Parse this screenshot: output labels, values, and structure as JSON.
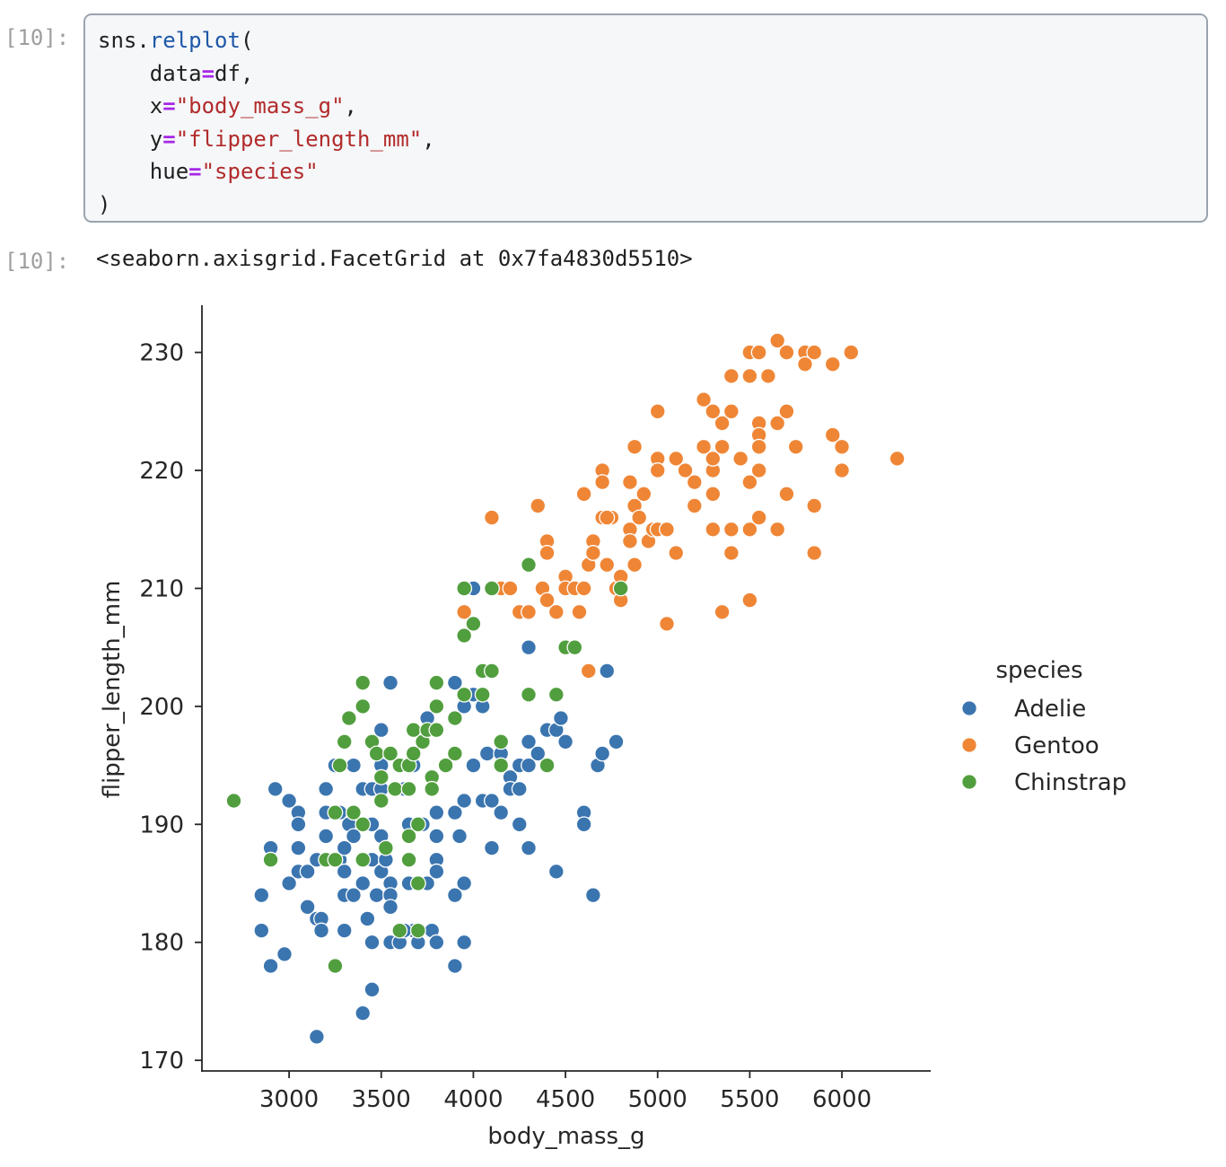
{
  "cell": {
    "input_prompt": "[10]:",
    "output_prompt": "[10]:",
    "code": {
      "l1_obj": "sns.",
      "l1_fn": "relplot",
      "l1_paren": "(",
      "l2_key": "data",
      "l2_val": "df,",
      "l3_key": "x",
      "l3_str": "\"body_mass_g\"",
      "l3_end": ",",
      "l4_key": "y",
      "l4_str": "\"flipper_length_mm\"",
      "l4_end": ",",
      "l5_key": "hue",
      "l5_str": "\"species\"",
      "l6": ")",
      "eq": "="
    },
    "output_text": "<seaborn.axisgrid.FacetGrid at 0x7fa4830d5510>"
  },
  "chart_data": {
    "type": "scatter",
    "xlabel": "body_mass_g",
    "ylabel": "flipper_length_mm",
    "xlim": [
      2527,
      6482
    ],
    "ylim": [
      169.1,
      234
    ],
    "xticks": [
      3000,
      3500,
      4000,
      4500,
      5000,
      5500,
      6000
    ],
    "yticks": [
      170,
      180,
      190,
      200,
      210,
      220,
      230
    ],
    "grid": false,
    "legend": {
      "title": "species",
      "placement": "center-right"
    },
    "series": [
      {
        "name": "Adelie",
        "color": "#3b75af",
        "points": [
          [
            2850,
            184
          ],
          [
            2850,
            181
          ],
          [
            2900,
            178
          ],
          [
            2900,
            188
          ],
          [
            2925,
            193
          ],
          [
            2975,
            179
          ],
          [
            3000,
            192
          ],
          [
            3000,
            185
          ],
          [
            3050,
            191
          ],
          [
            3050,
            190
          ],
          [
            3050,
            188
          ],
          [
            3050,
            186
          ],
          [
            3100,
            183
          ],
          [
            3100,
            186
          ],
          [
            3150,
            187
          ],
          [
            3150,
            182
          ],
          [
            3150,
            172
          ],
          [
            3175,
            182
          ],
          [
            3175,
            181
          ],
          [
            3200,
            193
          ],
          [
            3200,
            191
          ],
          [
            3200,
            189
          ],
          [
            3250,
            195
          ],
          [
            3275,
            191
          ],
          [
            3275,
            187
          ],
          [
            3300,
            188
          ],
          [
            3300,
            186
          ],
          [
            3300,
            184
          ],
          [
            3300,
            181
          ],
          [
            3325,
            190
          ],
          [
            3350,
            195
          ],
          [
            3350,
            191
          ],
          [
            3350,
            189
          ],
          [
            3350,
            184
          ],
          [
            3400,
            193
          ],
          [
            3400,
            187
          ],
          [
            3400,
            185
          ],
          [
            3400,
            174
          ],
          [
            3425,
            182
          ],
          [
            3450,
            190
          ],
          [
            3450,
            187
          ],
          [
            3450,
            193
          ],
          [
            3450,
            176
          ],
          [
            3475,
            184
          ],
          [
            3500,
            198
          ],
          [
            3500,
            195
          ],
          [
            3500,
            193
          ],
          [
            3500,
            189
          ],
          [
            3500,
            186
          ],
          [
            3525,
            187
          ],
          [
            3550,
            202
          ],
          [
            3550,
            185
          ],
          [
            3550,
            184
          ],
          [
            3550,
            183
          ],
          [
            3550,
            180
          ],
          [
            3600,
            180
          ],
          [
            3625,
            193
          ],
          [
            3650,
            190
          ],
          [
            3650,
            185
          ],
          [
            3675,
            181
          ],
          [
            3700,
            190
          ],
          [
            3700,
            180
          ],
          [
            3725,
            190
          ],
          [
            3750,
            199
          ],
          [
            3750,
            185
          ],
          [
            3775,
            181
          ],
          [
            3800,
            198
          ],
          [
            3800,
            191
          ],
          [
            3800,
            189
          ],
          [
            3800,
            187
          ],
          [
            3800,
            186
          ],
          [
            3800,
            180
          ],
          [
            3850,
            195
          ],
          [
            3900,
            202
          ],
          [
            3900,
            191
          ],
          [
            3900,
            184
          ],
          [
            3900,
            178
          ],
          [
            3925,
            189
          ],
          [
            3950,
            200
          ],
          [
            3950,
            192
          ],
          [
            3950,
            185
          ],
          [
            3950,
            180
          ],
          [
            4000,
            210
          ],
          [
            4000,
            201
          ],
          [
            4000,
            195
          ],
          [
            4050,
            200
          ],
          [
            4050,
            192
          ],
          [
            4075,
            196
          ],
          [
            4100,
            188
          ],
          [
            4100,
            192
          ],
          [
            4150,
            196
          ],
          [
            4150,
            191
          ],
          [
            4200,
            194
          ],
          [
            4200,
            193
          ],
          [
            4250,
            195
          ],
          [
            4250,
            190
          ],
          [
            4250,
            193
          ],
          [
            4300,
            205
          ],
          [
            4300,
            197
          ],
          [
            4300,
            195
          ],
          [
            4300,
            188
          ],
          [
            4350,
            196
          ],
          [
            4400,
            198
          ],
          [
            4450,
            198
          ],
          [
            4450,
            186
          ],
          [
            4475,
            199
          ],
          [
            4500,
            197
          ],
          [
            4600,
            191
          ],
          [
            4600,
            190
          ],
          [
            4650,
            184
          ],
          [
            4675,
            195
          ],
          [
            4700,
            196
          ],
          [
            4725,
            203
          ],
          [
            4775,
            197
          ],
          [
            3675,
            195
          ],
          [
            3625,
            181
          ],
          [
            3575,
            193
          ],
          [
            3450,
            180
          ],
          [
            3250,
            187
          ]
        ]
      },
      {
        "name": "Gentoo",
        "color": "#ef8636",
        "points": [
          [
            3950,
            208
          ],
          [
            4100,
            216
          ],
          [
            4150,
            210
          ],
          [
            4200,
            210
          ],
          [
            4250,
            208
          ],
          [
            4300,
            208
          ],
          [
            4350,
            217
          ],
          [
            4375,
            210
          ],
          [
            4400,
            214
          ],
          [
            4400,
            213
          ],
          [
            4400,
            209
          ],
          [
            4450,
            208
          ],
          [
            4500,
            211
          ],
          [
            4500,
            210
          ],
          [
            4550,
            210
          ],
          [
            4575,
            208
          ],
          [
            4600,
            218
          ],
          [
            4600,
            210
          ],
          [
            4625,
            203
          ],
          [
            4625,
            212
          ],
          [
            4650,
            214
          ],
          [
            4650,
            213
          ],
          [
            4700,
            220
          ],
          [
            4700,
            219
          ],
          [
            4700,
            216
          ],
          [
            4725,
            212
          ],
          [
            4750,
            216
          ],
          [
            4775,
            210
          ],
          [
            4800,
            211
          ],
          [
            4800,
            209
          ],
          [
            4850,
            219
          ],
          [
            4850,
            215
          ],
          [
            4850,
            214
          ],
          [
            4875,
            222
          ],
          [
            4875,
            217
          ],
          [
            4900,
            216
          ],
          [
            4925,
            218
          ],
          [
            4950,
            214
          ],
          [
            4975,
            215
          ],
          [
            5000,
            225
          ],
          [
            5000,
            221
          ],
          [
            5000,
            220
          ],
          [
            5000,
            215
          ],
          [
            5050,
            207
          ],
          [
            5050,
            215
          ],
          [
            5100,
            221
          ],
          [
            5100,
            213
          ],
          [
            5150,
            220
          ],
          [
            5200,
            217
          ],
          [
            5200,
            219
          ],
          [
            5250,
            226
          ],
          [
            5250,
            222
          ],
          [
            5300,
            225
          ],
          [
            5300,
            220
          ],
          [
            5300,
            221
          ],
          [
            5300,
            218
          ],
          [
            5300,
            215
          ],
          [
            5350,
            208
          ],
          [
            5350,
            224
          ],
          [
            5350,
            222
          ],
          [
            5400,
            228
          ],
          [
            5400,
            225
          ],
          [
            5400,
            215
          ],
          [
            5400,
            213
          ],
          [
            5450,
            221
          ],
          [
            5500,
            230
          ],
          [
            5500,
            228
          ],
          [
            5500,
            219
          ],
          [
            5500,
            215
          ],
          [
            5500,
            209
          ],
          [
            5550,
            230
          ],
          [
            5550,
            224
          ],
          [
            5550,
            223
          ],
          [
            5550,
            222
          ],
          [
            5550,
            220
          ],
          [
            5550,
            216
          ],
          [
            5600,
            228
          ],
          [
            5650,
            231
          ],
          [
            5650,
            224
          ],
          [
            5650,
            215
          ],
          [
            5700,
            230
          ],
          [
            5700,
            225
          ],
          [
            5700,
            218
          ],
          [
            5750,
            222
          ],
          [
            5800,
            230
          ],
          [
            5800,
            229
          ],
          [
            5850,
            230
          ],
          [
            5850,
            217
          ],
          [
            5850,
            213
          ],
          [
            5950,
            229
          ],
          [
            5950,
            223
          ],
          [
            6000,
            222
          ],
          [
            6000,
            220
          ],
          [
            6050,
            230
          ],
          [
            6300,
            221
          ],
          [
            4875,
            212
          ],
          [
            4725,
            216
          ]
        ]
      },
      {
        "name": "Chinstrap",
        "color": "#519e3e",
        "points": [
          [
            2700,
            192
          ],
          [
            2900,
            187
          ],
          [
            3200,
            187
          ],
          [
            3250,
            191
          ],
          [
            3250,
            187
          ],
          [
            3250,
            178
          ],
          [
            3275,
            195
          ],
          [
            3300,
            197
          ],
          [
            3325,
            199
          ],
          [
            3350,
            191
          ],
          [
            3400,
            202
          ],
          [
            3400,
            200
          ],
          [
            3400,
            190
          ],
          [
            3400,
            187
          ],
          [
            3450,
            197
          ],
          [
            3475,
            196
          ],
          [
            3500,
            192
          ],
          [
            3500,
            194
          ],
          [
            3525,
            188
          ],
          [
            3550,
            196
          ],
          [
            3575,
            193
          ],
          [
            3600,
            181
          ],
          [
            3600,
            195
          ],
          [
            3650,
            195
          ],
          [
            3650,
            193
          ],
          [
            3650,
            189
          ],
          [
            3650,
            187
          ],
          [
            3675,
            198
          ],
          [
            3675,
            196
          ],
          [
            3700,
            190
          ],
          [
            3700,
            185
          ],
          [
            3700,
            181
          ],
          [
            3725,
            197
          ],
          [
            3750,
            198
          ],
          [
            3775,
            194
          ],
          [
            3775,
            193
          ],
          [
            3800,
            202
          ],
          [
            3800,
            200
          ],
          [
            3800,
            198
          ],
          [
            3850,
            195
          ],
          [
            3900,
            199
          ],
          [
            3900,
            196
          ],
          [
            3950,
            210
          ],
          [
            3950,
            206
          ],
          [
            3950,
            201
          ],
          [
            4000,
            207
          ],
          [
            4050,
            203
          ],
          [
            4050,
            201
          ],
          [
            4100,
            203
          ],
          [
            4100,
            210
          ],
          [
            4150,
            195
          ],
          [
            4150,
            197
          ],
          [
            4300,
            212
          ],
          [
            4300,
            201
          ],
          [
            4400,
            195
          ],
          [
            4450,
            201
          ],
          [
            4500,
            205
          ],
          [
            4550,
            205
          ],
          [
            4800,
            210
          ]
        ]
      }
    ]
  }
}
